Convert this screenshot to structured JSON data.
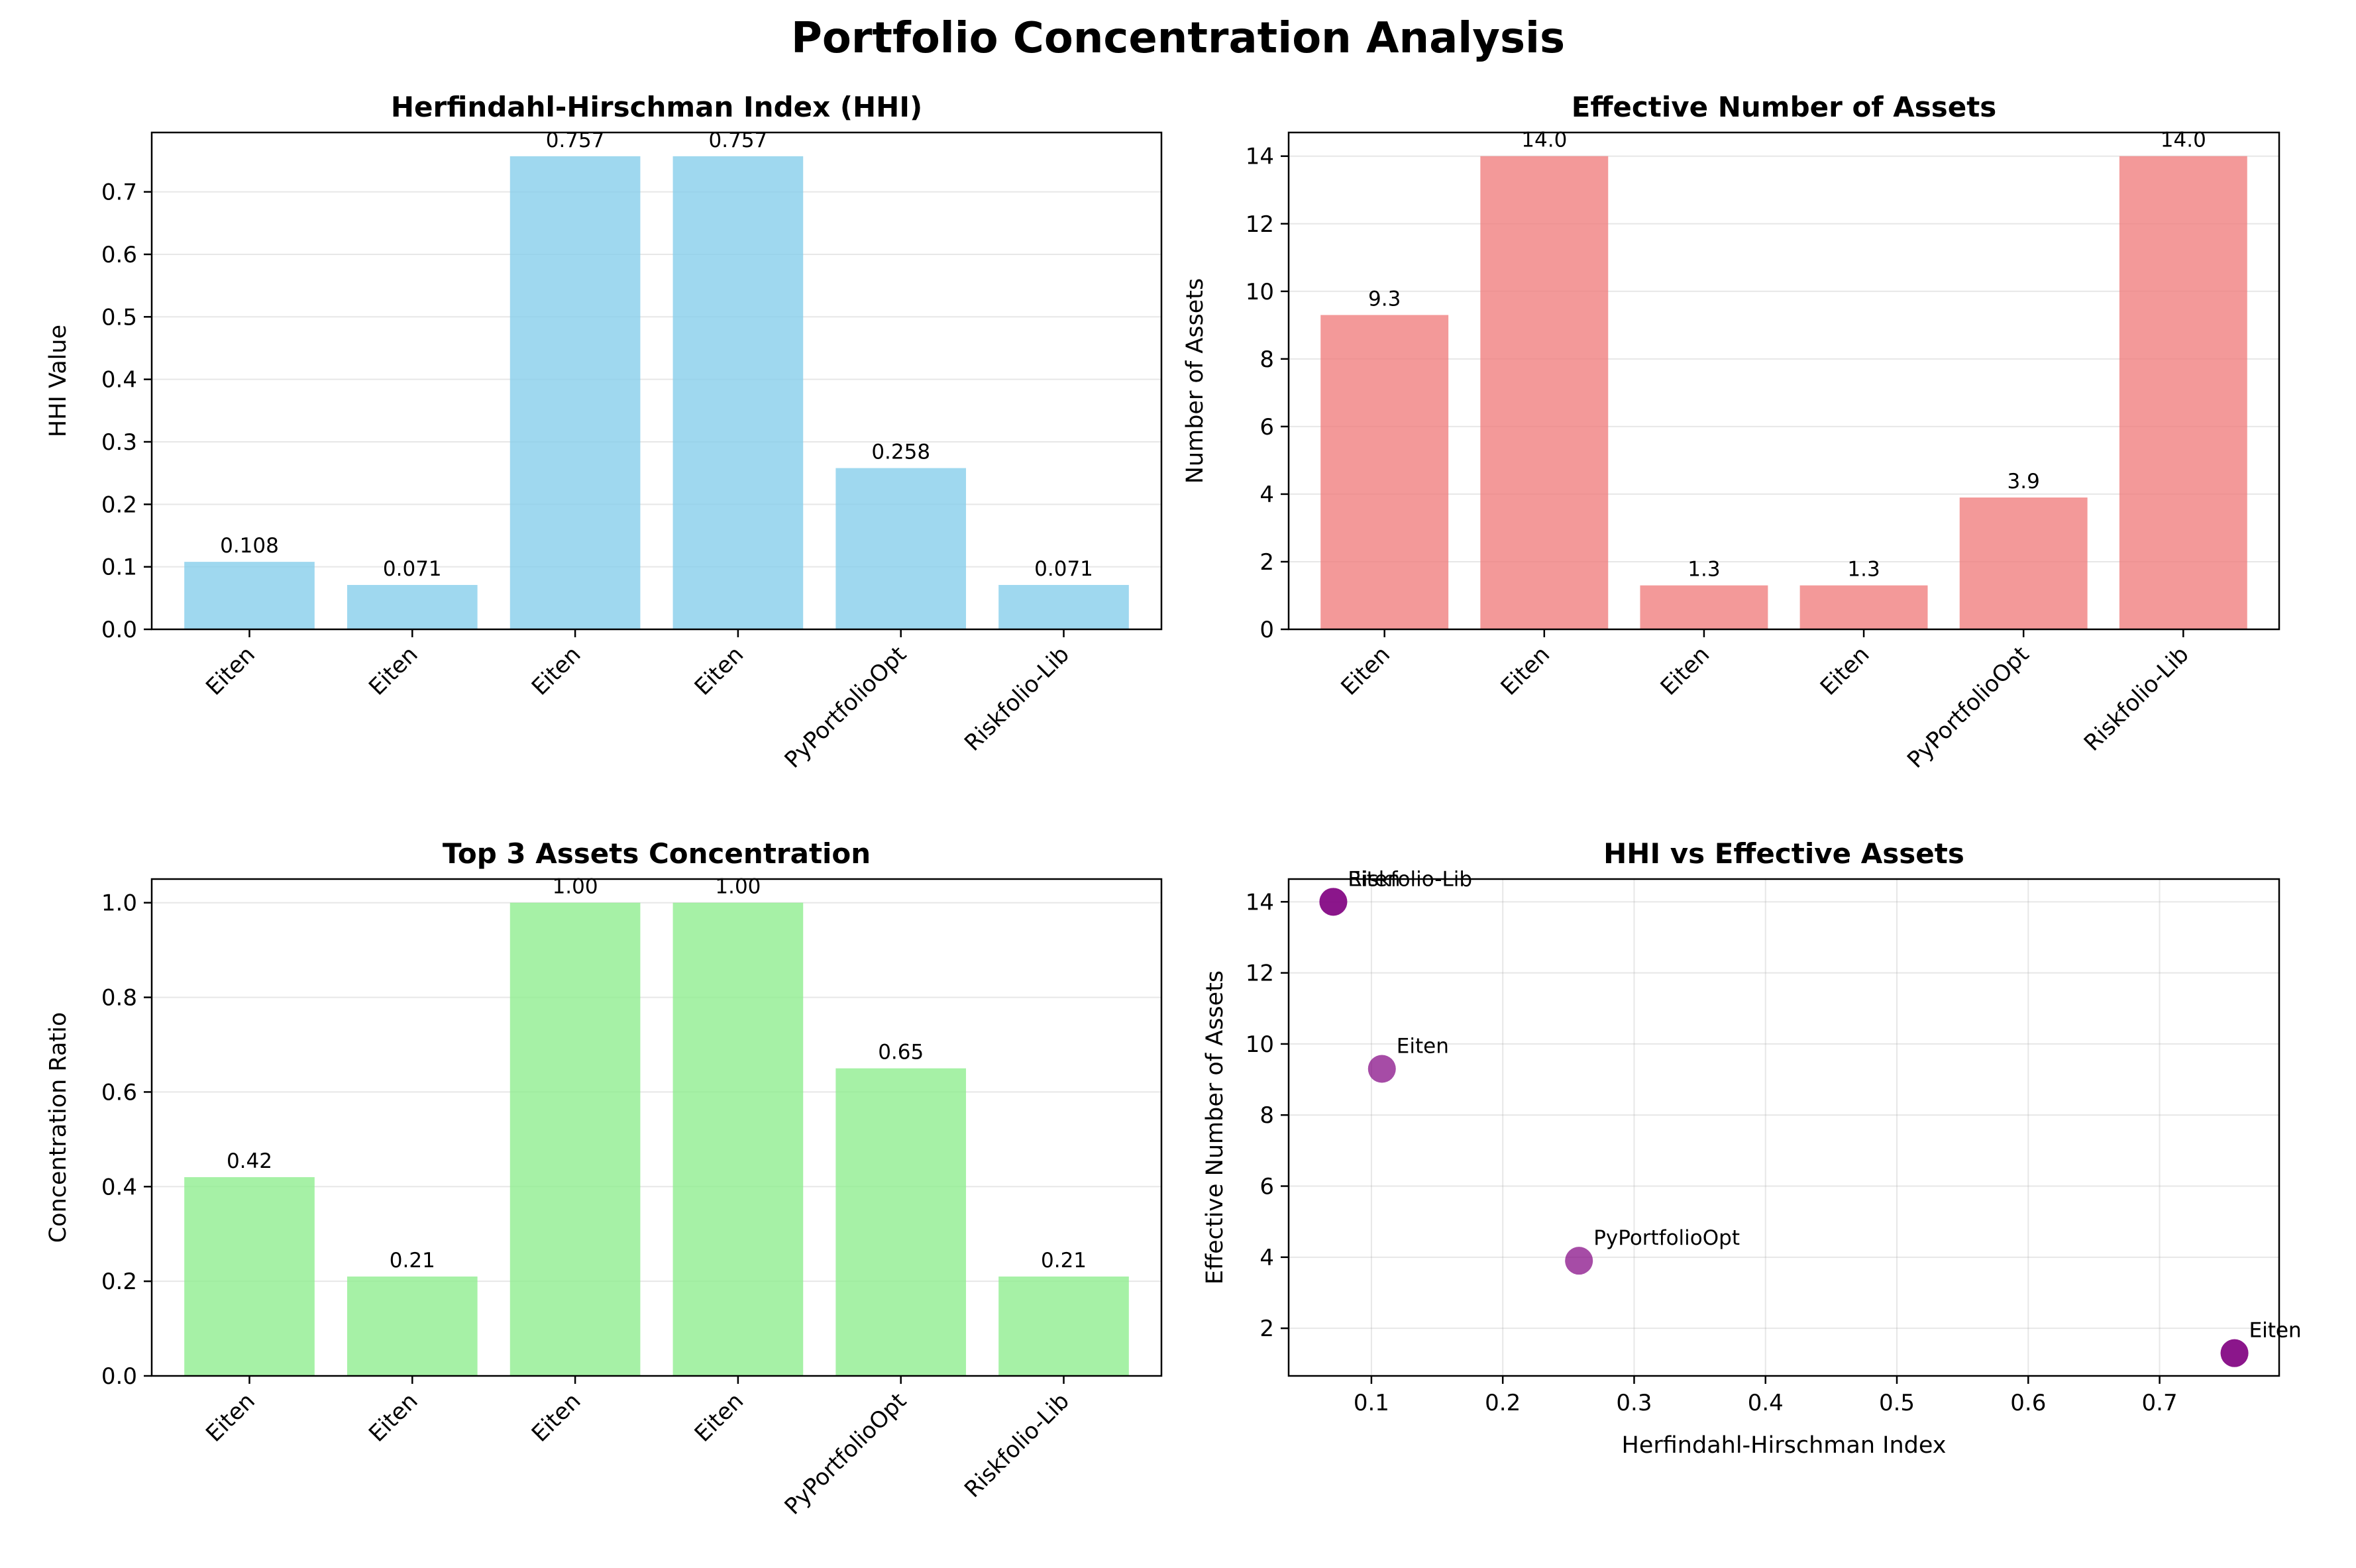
{
  "figure": {
    "title": "Portfolio Concentration Analysis"
  },
  "chart_data": [
    {
      "type": "bar",
      "title": "Herfindahl-Hirschman Index (HHI)",
      "xlabel": "",
      "ylabel": "HHI Value",
      "categories": [
        "Eiten",
        "Eiten",
        "Eiten",
        "Eiten",
        "PyPortfolioOpt",
        "Riskfolio-Lib"
      ],
      "values": [
        0.108,
        0.071,
        0.757,
        0.757,
        0.258,
        0.071
      ],
      "data_labels": [
        "0.108",
        "0.071",
        "0.757",
        "0.757",
        "0.258",
        "0.071"
      ],
      "ylim": [
        0,
        0.795
      ],
      "yticks": [
        0.0,
        0.1,
        0.2,
        0.3,
        0.4,
        0.5,
        0.6,
        0.7
      ],
      "ytick_labels": [
        "0.0",
        "0.1",
        "0.2",
        "0.3",
        "0.4",
        "0.5",
        "0.6",
        "0.7"
      ],
      "color": "#87ceeb",
      "grid": "y"
    },
    {
      "type": "bar",
      "title": "Effective Number of Assets",
      "xlabel": "",
      "ylabel": "Number of Assets",
      "categories": [
        "Eiten",
        "Eiten",
        "Eiten",
        "Eiten",
        "PyPortfolioOpt",
        "Riskfolio-Lib"
      ],
      "values": [
        9.3,
        14.0,
        1.3,
        1.3,
        3.9,
        14.0
      ],
      "data_labels": [
        "9.3",
        "14.0",
        "1.3",
        "1.3",
        "3.9",
        "14.0"
      ],
      "ylim": [
        0,
        14.7
      ],
      "yticks": [
        0,
        2,
        4,
        6,
        8,
        10,
        12,
        14
      ],
      "ytick_labels": [
        "0",
        "2",
        "4",
        "6",
        "8",
        "10",
        "12",
        "14"
      ],
      "color": "#f08080",
      "grid": "y"
    },
    {
      "type": "bar",
      "title": "Top 3 Assets Concentration",
      "xlabel": "",
      "ylabel": "Concentration Ratio",
      "categories": [
        "Eiten",
        "Eiten",
        "Eiten",
        "Eiten",
        "PyPortfolioOpt",
        "Riskfolio-Lib"
      ],
      "values": [
        0.42,
        0.21,
        1.0,
        1.0,
        0.65,
        0.21
      ],
      "data_labels": [
        "0.42",
        "0.21",
        "1.00",
        "1.00",
        "0.65",
        "0.21"
      ],
      "ylim": [
        0,
        1.05
      ],
      "yticks": [
        0.0,
        0.2,
        0.4,
        0.6,
        0.8,
        1.0
      ],
      "ytick_labels": [
        "0.0",
        "0.2",
        "0.4",
        "0.6",
        "0.8",
        "1.0"
      ],
      "color": "#90ee90",
      "grid": "y"
    },
    {
      "type": "scatter",
      "title": "HHI vs Effective Assets",
      "xlabel": "Herfindahl-Hirschman Index",
      "ylabel": "Effective Number of Assets",
      "points": [
        {
          "x": 0.108,
          "y": 9.3,
          "label": "Eiten"
        },
        {
          "x": 0.071,
          "y": 14.0,
          "label": "Eiten"
        },
        {
          "x": 0.757,
          "y": 1.3,
          "label": "Eiten"
        },
        {
          "x": 0.757,
          "y": 1.3,
          "label": "Eiten"
        },
        {
          "x": 0.258,
          "y": 3.9,
          "label": "PyPortfolioOpt"
        },
        {
          "x": 0.071,
          "y": 14.0,
          "label": "Riskfolio-Lib"
        }
      ],
      "xlim": [
        0.037,
        0.791
      ],
      "ylim": [
        0.66,
        14.64
      ],
      "xticks": [
        0.1,
        0.2,
        0.3,
        0.4,
        0.5,
        0.6,
        0.7
      ],
      "xtick_labels": [
        "0.1",
        "0.2",
        "0.3",
        "0.4",
        "0.5",
        "0.6",
        "0.7"
      ],
      "yticks": [
        2,
        4,
        6,
        8,
        10,
        12,
        14
      ],
      "ytick_labels": [
        "2",
        "4",
        "6",
        "8",
        "10",
        "12",
        "14"
      ],
      "color": "#800080",
      "grid": "both"
    }
  ]
}
